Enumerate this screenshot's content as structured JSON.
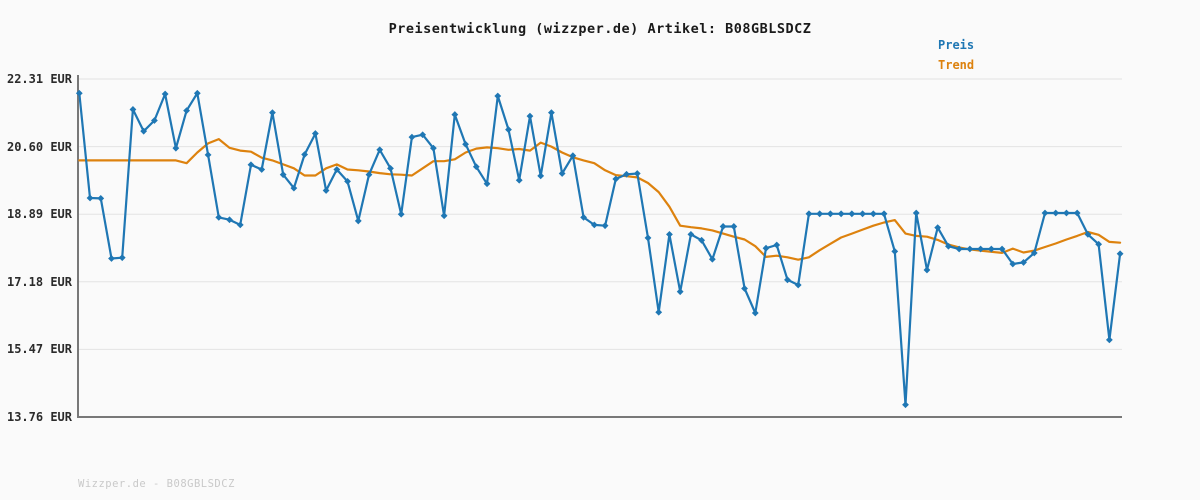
{
  "header": {
    "title": "Preisentwicklung (wizzper.de) Artikel: B08GBLSDCZ"
  },
  "legend": {
    "items": [
      {
        "label": "Preis",
        "color": "#1f77b4"
      },
      {
        "label": "Trend",
        "color": "#dd820e"
      }
    ]
  },
  "footer": {
    "text": "Wizzper.de - B08GBLSDCZ"
  },
  "chart_data": {
    "type": "line",
    "title": "Preisentwicklung (wizzper.de) Artikel: B08GBLSDCZ",
    "xlabel": "",
    "ylabel": "",
    "x_tick_labels_visible": false,
    "grid": "horizontal",
    "legend_position": "top-right",
    "currency": "EUR",
    "ylim": [
      13.76,
      22.31
    ],
    "yticks": [
      {
        "label": "22.31 EUR",
        "value": 22.31
      },
      {
        "label": "20.60 EUR",
        "value": 20.6
      },
      {
        "label": "18.89 EUR",
        "value": 18.89
      },
      {
        "label": "17.18 EUR",
        "value": 17.18
      },
      {
        "label": "15.47 EUR",
        "value": 15.47
      },
      {
        "label": "13.76 EUR",
        "value": 13.76
      }
    ],
    "series": [
      {
        "name": "Preis",
        "color": "#1f77b4",
        "marker": "diamond",
        "line_width": 2.2,
        "values": [
          21.95,
          19.3,
          19.29,
          17.77,
          17.79,
          21.54,
          20.99,
          21.26,
          21.93,
          20.56,
          21.51,
          21.95,
          20.39,
          18.81,
          18.75,
          18.62,
          20.14,
          20.02,
          21.46,
          19.89,
          19.55,
          20.4,
          20.93,
          19.49,
          20.02,
          19.72,
          18.72,
          19.89,
          20.52,
          20.05,
          18.89,
          20.84,
          20.9,
          20.56,
          18.85,
          21.41,
          20.66,
          20.09,
          19.66,
          21.88,
          21.03,
          19.75,
          21.37,
          19.86,
          21.46,
          19.92,
          20.37,
          18.81,
          18.62,
          18.6,
          19.78,
          19.9,
          19.92,
          18.29,
          16.41,
          18.38,
          16.93,
          18.38,
          18.23,
          17.75,
          18.58,
          18.58,
          17.01,
          16.39,
          18.03,
          18.11,
          17.23,
          17.1,
          18.9,
          18.9,
          18.9,
          18.9,
          18.9,
          18.9,
          18.9,
          18.9,
          17.95,
          14.07,
          18.92,
          17.48,
          18.55,
          18.08,
          18.01,
          18.01,
          18.01,
          18.01,
          18.01,
          17.63,
          17.67,
          17.91,
          18.92,
          18.92,
          18.92,
          18.92,
          18.38,
          18.13,
          15.71,
          17.89
        ]
      },
      {
        "name": "Trend",
        "color": "#dd820e",
        "marker": "none",
        "line_width": 2.2,
        "values": [
          20.25,
          20.25,
          20.25,
          20.25,
          20.25,
          20.25,
          20.25,
          20.25,
          20.25,
          20.25,
          20.18,
          20.45,
          20.68,
          20.79,
          20.57,
          20.5,
          20.47,
          20.32,
          20.25,
          20.15,
          20.05,
          19.87,
          19.87,
          20.05,
          20.15,
          20.02,
          20.0,
          19.97,
          19.93,
          19.9,
          19.89,
          19.87,
          20.05,
          20.23,
          20.23,
          20.28,
          20.45,
          20.55,
          20.58,
          20.56,
          20.52,
          20.54,
          20.5,
          20.7,
          20.6,
          20.45,
          20.33,
          20.25,
          20.18,
          20.0,
          19.88,
          19.85,
          19.82,
          19.68,
          19.45,
          19.08,
          18.6,
          18.56,
          18.53,
          18.48,
          18.4,
          18.32,
          18.25,
          18.08,
          17.81,
          17.84,
          17.8,
          17.74,
          17.8,
          17.98,
          18.14,
          18.3,
          18.4,
          18.5,
          18.6,
          18.68,
          18.74,
          18.4,
          18.34,
          18.32,
          18.24,
          18.12,
          18.05,
          18.0,
          17.97,
          17.94,
          17.91,
          18.02,
          17.92,
          17.97,
          18.06,
          18.15,
          18.25,
          18.34,
          18.44,
          18.37,
          18.19,
          18.17
        ]
      }
    ]
  }
}
